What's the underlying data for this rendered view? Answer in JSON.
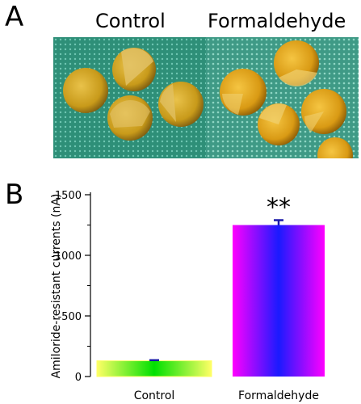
{
  "panels": {
    "a_label": "A",
    "b_label": "B"
  },
  "photos": [
    {
      "title": "Control",
      "background_color": "#2e8f78",
      "egg_color": "#c89a1a",
      "pole_color": "#e2c36a"
    },
    {
      "title": "Formaldehyde",
      "background_color": "#3f9a86",
      "egg_color": "#d99a14",
      "pole_color": "#f0d070"
    }
  ],
  "chart_data": {
    "type": "bar",
    "categories": [
      "Control",
      "Formaldehyde"
    ],
    "values": [
      -130,
      -1250
    ],
    "errors": [
      5,
      40
    ],
    "ylabel": "Amiloride-resistant currents (nA)",
    "xlabel": "",
    "ylim": [
      0,
      -1500
    ],
    "yticks": [
      0,
      -500,
      -1000,
      -1500
    ],
    "ytick_labels": [
      "0",
      "-500",
      "-1000",
      "-1500"
    ],
    "annotations": [
      {
        "category": "Formaldehyde",
        "text": "**"
      }
    ],
    "bar_fills": [
      {
        "edge": "#ffff66",
        "center": "#00e000"
      },
      {
        "edge": "#ff00ff",
        "center": "#1a1aff"
      }
    ],
    "error_bar_color": "#1a1aa8",
    "grid": false
  }
}
